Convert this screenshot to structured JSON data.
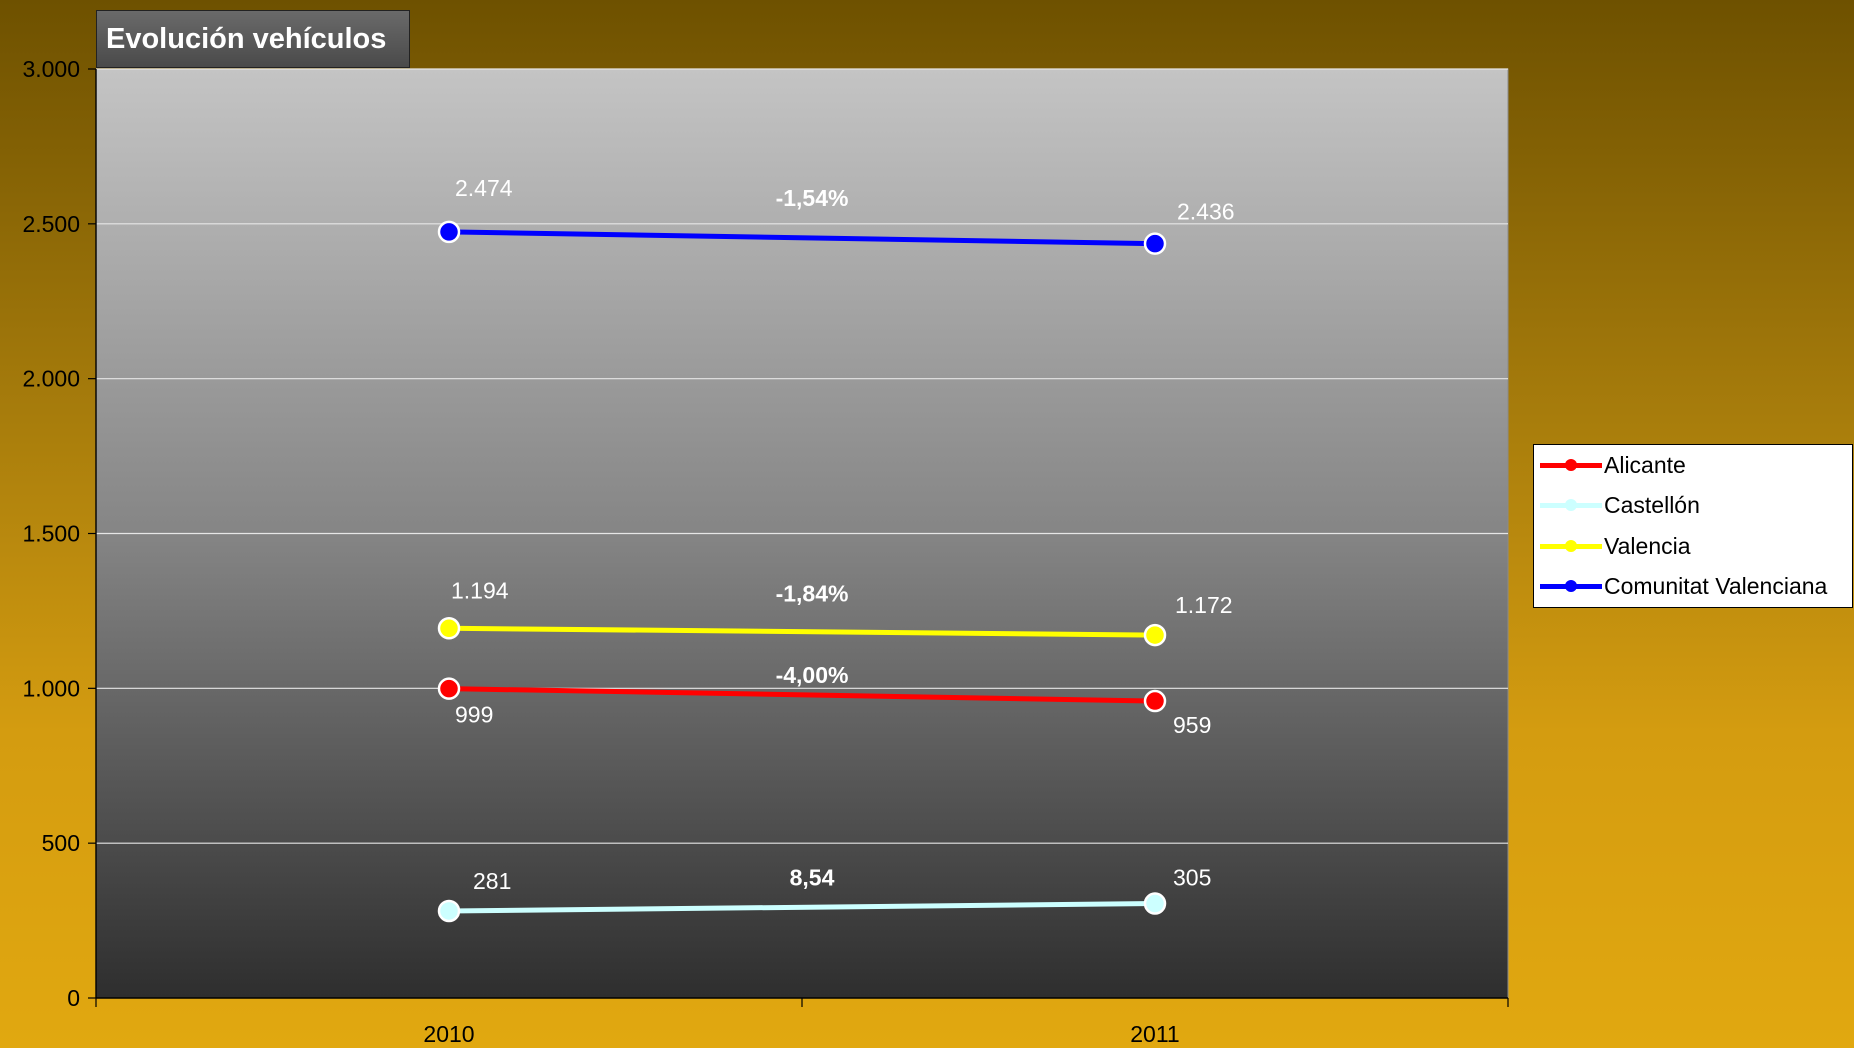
{
  "chart_data": {
    "type": "line",
    "title": "Evolución vehículos",
    "categories": [
      "2010",
      "2011"
    ],
    "ylim": [
      0,
      3000
    ],
    "yticks": [
      0,
      500,
      1000,
      1500,
      2000,
      2500,
      3000
    ],
    "ytick_labels": [
      "0",
      "500",
      "1.000",
      "1.500",
      "2.000",
      "2.500",
      "3.000"
    ],
    "grid": true,
    "legend": "right",
    "series": [
      {
        "name": "Alicante",
        "values": [
          999,
          959
        ],
        "value_labels": [
          "999",
          "959"
        ],
        "change_label": "-4,00%",
        "color": "#ff0000"
      },
      {
        "name": "Castellón",
        "values": [
          281,
          305
        ],
        "value_labels": [
          "281",
          "305"
        ],
        "change_label": "8,54",
        "color": "#ccffff"
      },
      {
        "name": "Valencia",
        "values": [
          1194,
          1172
        ],
        "value_labels": [
          "1.194",
          "1.172"
        ],
        "change_label": "-1,84%",
        "color": "#ffff00"
      },
      {
        "name": "Comunitat Valenciana",
        "values": [
          2474,
          2436
        ],
        "value_labels": [
          "2.474",
          "2.436"
        ],
        "change_label": "-1,54%",
        "color": "#0000ff"
      }
    ]
  }
}
